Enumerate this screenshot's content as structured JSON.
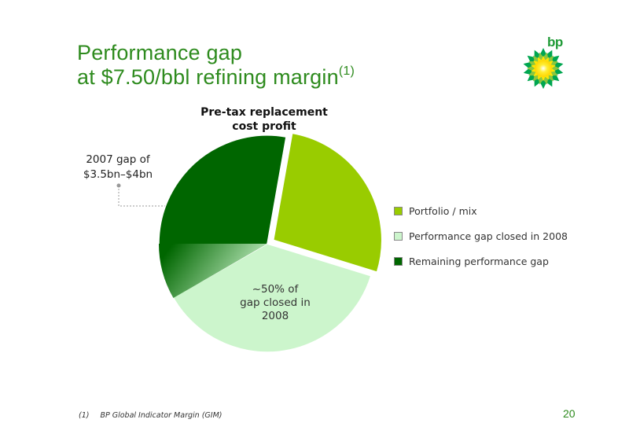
{
  "slide": {
    "title_line1": "Performance gap",
    "title_line2": "at $7.50/bbl refining margin",
    "title_sup": "(1)",
    "logo_text": "bp",
    "callout_line1": "2007 gap of",
    "callout_line2": "$3.5bn–$4bn",
    "slice_label_line1": "~50% of",
    "slice_label_line2": "gap closed in",
    "slice_label_line3": "2008",
    "footnote_num": "(1)",
    "footnote_text": "BP Global Indicator Margin (GIM)",
    "page_number": "20"
  },
  "chart_data": {
    "type": "pie",
    "title_line1": "Pre-tax replacement",
    "title_line2": "cost profit",
    "slices": [
      {
        "label": "Portfolio / mix",
        "percent": 27,
        "color": "#99cc00",
        "exploded": true
      },
      {
        "label": "Performance gap closed in 2008",
        "percent": 37,
        "color": "#ccf5cc",
        "exploded": false
      },
      {
        "label": "Remaining performance gap",
        "percent": 36,
        "color": "#006600",
        "exploded": false
      }
    ],
    "legend_position": "right"
  }
}
